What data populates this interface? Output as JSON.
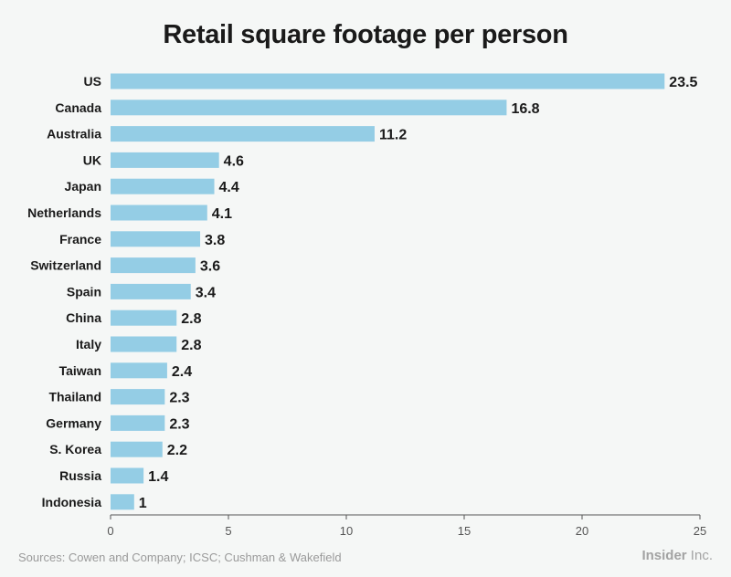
{
  "chart_data": {
    "type": "bar",
    "orientation": "horizontal",
    "title": "Retail square footage per person",
    "categories": [
      "US",
      "Canada",
      "Australia",
      "UK",
      "Japan",
      "Netherlands",
      "France",
      "Switzerland",
      "Spain",
      "China",
      "Italy",
      "Taiwan",
      "Thailand",
      "Germany",
      "S. Korea",
      "Russia",
      "Indonesia"
    ],
    "values": [
      23.5,
      16.8,
      11.2,
      4.6,
      4.4,
      4.1,
      3.8,
      3.6,
      3.4,
      2.8,
      2.8,
      2.4,
      2.3,
      2.3,
      2.2,
      1.4,
      1
    ],
    "value_labels": [
      "23.5",
      "16.8",
      "11.2",
      "4.6",
      "4.4",
      "4.1",
      "3.8",
      "3.6",
      "3.4",
      "2.8",
      "2.8",
      "2.4",
      "2.3",
      "2.3",
      "2.2",
      "1.4",
      "1"
    ],
    "xlim": [
      0,
      25
    ],
    "xticks": [
      0,
      5,
      10,
      15,
      20,
      25
    ],
    "xlabel": "",
    "ylabel": "",
    "grid": false,
    "bar_color": "#94cde5"
  },
  "footer": {
    "source": "Sources: Cowen and Company; ICSC; Cushman & Wakefield",
    "brand_name": "Insider",
    "brand_suffix": " Inc."
  }
}
